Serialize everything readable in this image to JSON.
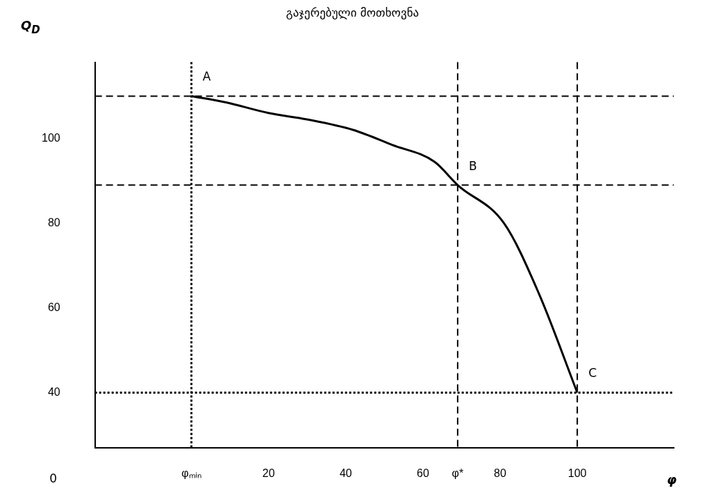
{
  "chart_data": {
    "type": "line",
    "title": "გაჯერებული მოთხოვნა",
    "xlabel": "φ",
    "ylabel": "Q$_{D}$",
    "x": [
      0,
      9,
      20,
      30,
      42,
      52,
      63,
      69,
      81,
      90,
      100
    ],
    "series": [
      {
        "color": "#000000",
        "values": [
          110,
          108.5,
          106,
          104.5,
          102,
          98.5,
          94.5,
          89,
          80,
          63.5,
          40
        ]
      }
    ],
    "xlim": [
      -25,
      125
    ],
    "ylim": [
      27,
      118
    ],
    "xticks": [
      {
        "value": 0,
        "label": "φₘᵢₙ"
      },
      20,
      40,
      60,
      {
        "value": 69,
        "label": "φ*"
      },
      80,
      100
    ],
    "yticks": [
      40,
      60,
      80,
      100
    ],
    "ref_lines": [
      {
        "axis": "y",
        "value": 110,
        "line_style": "dashed"
      },
      {
        "axis": "x",
        "value": 100,
        "line_style": "dashed"
      },
      {
        "axis": "x",
        "value": 0,
        "line_style": "dotted"
      },
      {
        "axis": "y",
        "value": 40,
        "line_style": "dotted"
      },
      {
        "axis": "x",
        "value": 69,
        "line_style": "dashed"
      },
      {
        "axis": "y",
        "value": 89,
        "line_style": "dashed"
      }
    ],
    "annotations": [
      {
        "text": "A",
        "x": 0,
        "y": 110
      },
      {
        "text": "B",
        "x": 69,
        "y": 89
      },
      {
        "text": "C",
        "x": 100,
        "y": 40
      },
      "0"
    ],
    "grid": false,
    "legend": false,
    "marker": "none",
    "line_style": "solid"
  }
}
